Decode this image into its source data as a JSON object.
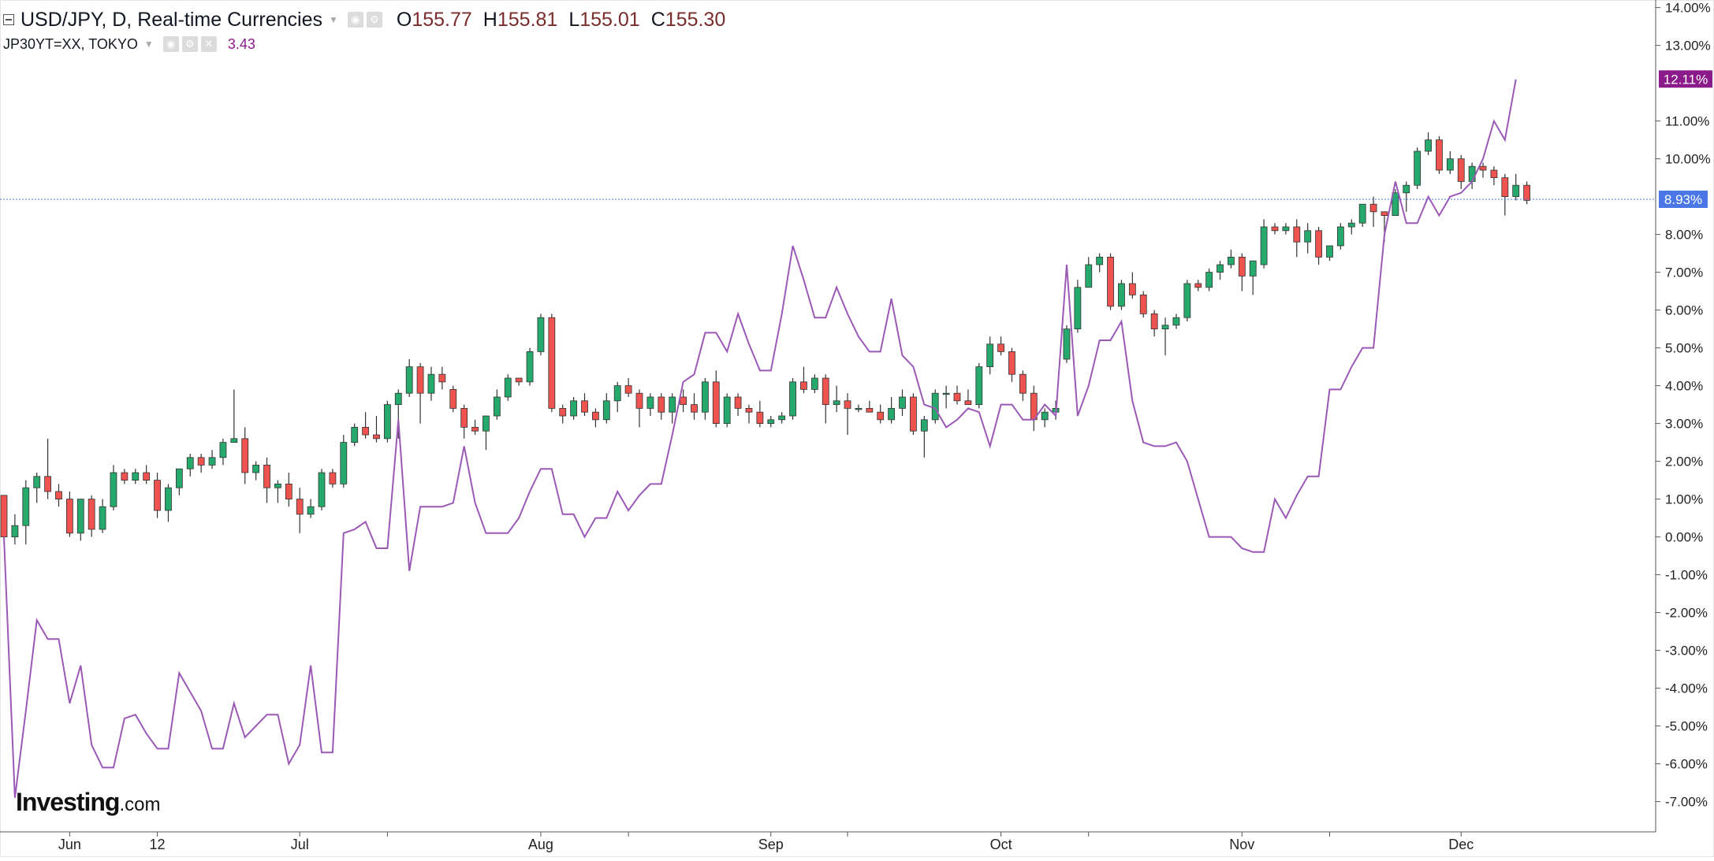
{
  "header": {
    "symbol_line": "USD/JPY, D, Real-time Currencies",
    "ohlc": [
      {
        "label": "O",
        "value": "155.77"
      },
      {
        "label": "H",
        "value": "155.81"
      },
      {
        "label": "L",
        "value": "155.01"
      },
      {
        "label": "C",
        "value": "155.30"
      }
    ],
    "indicator_line": "JP30YT=XX, TOKYO",
    "indicator_value": "3.43"
  },
  "brand": {
    "main": "Investing",
    "suffix": ".com"
  },
  "colors": {
    "up": "#26a96c",
    "down": "#ef5350",
    "comparison": "#9b59b6",
    "last_price_badge": "#4a77e5",
    "comparison_badge": "#8b1a8b"
  },
  "chart_data": {
    "type": "candlestick",
    "y_axis": {
      "unit": "percent change",
      "ylim": [
        -7.8,
        14.2
      ],
      "ticks": [
        14,
        13,
        11,
        10,
        8,
        7,
        6,
        5,
        4,
        3,
        2,
        1,
        0,
        -1,
        -2,
        -3,
        -4,
        -5,
        -6,
        -7
      ],
      "tick_labels": [
        "14.00%",
        "13.00%",
        "11.00%",
        "10.00%",
        "8.00%",
        "7.00%",
        "6.00%",
        "5.00%",
        "4.00%",
        "3.00%",
        "2.00%",
        "1.00%",
        "0.00%",
        "-1.00%",
        "-2.00%",
        "-3.00%",
        "-4.00%",
        "-5.00%",
        "-6.00%",
        "-7.00%"
      ]
    },
    "x_axis": {
      "index_range": [
        0,
        145
      ],
      "labels": [
        {
          "index": 6,
          "text": "Jun"
        },
        {
          "index": 14,
          "text": "12"
        },
        {
          "index": 27,
          "text": "Jul"
        },
        {
          "index": 49,
          "text": "Aug"
        },
        {
          "index": 70,
          "text": "Sep"
        },
        {
          "index": 91,
          "text": "Oct"
        },
        {
          "index": 113,
          "text": "Nov"
        },
        {
          "index": 133,
          "text": "Dec"
        }
      ],
      "ticks": [
        6,
        14,
        27,
        35,
        49,
        57,
        70,
        77,
        91,
        99,
        113,
        121,
        133
      ]
    },
    "series": [
      {
        "name": "USD/JPY",
        "kind": "candlestick",
        "ohlc": [
          [
            1.1,
            1.1,
            -0.2,
            0.0
          ],
          [
            0.0,
            0.6,
            -0.2,
            0.3
          ],
          [
            0.3,
            1.5,
            -0.2,
            1.3
          ],
          [
            1.3,
            1.7,
            0.9,
            1.6
          ],
          [
            1.6,
            2.6,
            1.0,
            1.2
          ],
          [
            1.2,
            1.4,
            0.8,
            1.0
          ],
          [
            1.0,
            1.2,
            0.0,
            0.1
          ],
          [
            0.1,
            1.0,
            -0.1,
            1.0
          ],
          [
            1.0,
            1.1,
            0.0,
            0.2
          ],
          [
            0.2,
            1.0,
            0.1,
            0.8
          ],
          [
            0.8,
            1.9,
            0.7,
            1.7
          ],
          [
            1.7,
            1.8,
            1.4,
            1.5
          ],
          [
            1.5,
            1.8,
            1.4,
            1.7
          ],
          [
            1.7,
            1.9,
            1.4,
            1.5
          ],
          [
            1.5,
            1.7,
            0.5,
            0.7
          ],
          [
            0.7,
            1.4,
            0.4,
            1.3
          ],
          [
            1.3,
            1.8,
            1.1,
            1.8
          ],
          [
            1.8,
            2.2,
            1.6,
            2.1
          ],
          [
            2.1,
            2.2,
            1.7,
            1.9
          ],
          [
            1.9,
            2.3,
            1.8,
            2.1
          ],
          [
            2.1,
            2.6,
            1.9,
            2.5
          ],
          [
            2.5,
            3.9,
            2.5,
            2.6
          ],
          [
            2.6,
            2.9,
            1.4,
            1.7
          ],
          [
            1.7,
            2.0,
            1.5,
            1.9
          ],
          [
            1.9,
            2.1,
            0.9,
            1.3
          ],
          [
            1.3,
            1.5,
            0.9,
            1.4
          ],
          [
            1.4,
            1.7,
            0.8,
            1.0
          ],
          [
            1.0,
            1.3,
            0.1,
            0.6
          ],
          [
            0.6,
            1.0,
            0.5,
            0.8
          ],
          [
            0.8,
            1.8,
            0.7,
            1.7
          ],
          [
            1.7,
            1.8,
            1.3,
            1.4
          ],
          [
            1.4,
            2.7,
            1.3,
            2.5
          ],
          [
            2.5,
            3.0,
            2.4,
            2.9
          ],
          [
            2.9,
            3.3,
            2.6,
            2.7
          ],
          [
            2.7,
            3.2,
            2.5,
            2.6
          ],
          [
            2.6,
            3.6,
            2.5,
            3.5
          ],
          [
            3.5,
            3.9,
            2.6,
            3.8
          ],
          [
            3.8,
            4.7,
            3.7,
            4.5
          ],
          [
            4.5,
            4.6,
            3.0,
            3.8
          ],
          [
            3.8,
            4.5,
            3.6,
            4.3
          ],
          [
            4.3,
            4.5,
            3.9,
            4.1
          ],
          [
            3.9,
            4.0,
            3.3,
            3.4
          ],
          [
            3.4,
            3.5,
            2.6,
            2.9
          ],
          [
            2.9,
            3.1,
            2.7,
            2.8
          ],
          [
            2.8,
            3.2,
            2.3,
            3.2
          ],
          [
            3.2,
            3.9,
            3.1,
            3.7
          ],
          [
            3.7,
            4.3,
            3.6,
            4.2
          ],
          [
            4.2,
            4.2,
            4.0,
            4.1
          ],
          [
            4.1,
            5.0,
            4.0,
            4.9
          ],
          [
            4.9,
            5.9,
            4.8,
            5.8
          ],
          [
            5.8,
            5.9,
            3.3,
            3.4
          ],
          [
            3.4,
            3.5,
            3.0,
            3.2
          ],
          [
            3.2,
            3.7,
            3.1,
            3.6
          ],
          [
            3.6,
            3.8,
            3.2,
            3.3
          ],
          [
            3.3,
            3.4,
            2.9,
            3.1
          ],
          [
            3.1,
            3.8,
            3.0,
            3.6
          ],
          [
            3.6,
            4.1,
            3.3,
            4.0
          ],
          [
            4.0,
            4.2,
            3.7,
            3.8
          ],
          [
            3.8,
            3.9,
            2.9,
            3.4
          ],
          [
            3.4,
            3.8,
            3.2,
            3.7
          ],
          [
            3.7,
            3.8,
            3.1,
            3.3
          ],
          [
            3.3,
            3.8,
            3.0,
            3.7
          ],
          [
            3.7,
            3.9,
            3.3,
            3.5
          ],
          [
            3.5,
            3.8,
            3.1,
            3.3
          ],
          [
            3.3,
            4.2,
            3.1,
            4.1
          ],
          [
            4.1,
            4.4,
            2.9,
            3.0
          ],
          [
            3.0,
            3.8,
            2.9,
            3.7
          ],
          [
            3.7,
            3.8,
            3.2,
            3.4
          ],
          [
            3.4,
            3.5,
            3.0,
            3.3
          ],
          [
            3.3,
            3.6,
            2.9,
            3.0
          ],
          [
            3.0,
            3.2,
            2.9,
            3.1
          ],
          [
            3.1,
            3.3,
            3.0,
            3.2
          ],
          [
            3.2,
            4.2,
            3.1,
            4.1
          ],
          [
            4.1,
            4.5,
            3.8,
            3.9
          ],
          [
            3.9,
            4.3,
            3.8,
            4.2
          ],
          [
            4.2,
            4.3,
            3.0,
            3.5
          ],
          [
            3.5,
            4.0,
            3.3,
            3.6
          ],
          [
            3.6,
            3.8,
            2.7,
            3.4
          ],
          [
            3.4,
            3.5,
            3.3,
            3.4
          ],
          [
            3.4,
            3.6,
            3.3,
            3.3
          ],
          [
            3.3,
            3.5,
            3.0,
            3.1
          ],
          [
            3.1,
            3.7,
            3.0,
            3.4
          ],
          [
            3.4,
            3.9,
            3.2,
            3.7
          ],
          [
            3.7,
            3.8,
            2.7,
            2.8
          ],
          [
            2.8,
            3.2,
            2.1,
            3.1
          ],
          [
            3.1,
            3.9,
            3.0,
            3.8
          ],
          [
            3.8,
            4.0,
            3.4,
            3.8
          ],
          [
            3.8,
            4.0,
            3.5,
            3.6
          ],
          [
            3.6,
            3.9,
            3.5,
            3.5
          ],
          [
            3.5,
            4.6,
            3.4,
            4.5
          ],
          [
            4.5,
            5.3,
            4.3,
            5.1
          ],
          [
            5.1,
            5.3,
            4.8,
            4.9
          ],
          [
            4.9,
            5.0,
            4.1,
            4.3
          ],
          [
            4.3,
            4.4,
            3.6,
            3.8
          ],
          [
            3.8,
            4.0,
            2.8,
            3.1
          ],
          [
            3.1,
            3.4,
            2.9,
            3.3
          ],
          [
            3.3,
            3.6,
            3.1,
            3.4
          ],
          [
            4.7,
            5.6,
            4.6,
            5.5
          ],
          [
            5.5,
            6.8,
            5.4,
            6.6
          ],
          [
            6.6,
            7.4,
            6.6,
            7.2
          ],
          [
            7.2,
            7.5,
            7.0,
            7.4
          ],
          [
            7.4,
            7.5,
            6.0,
            6.1
          ],
          [
            6.1,
            6.8,
            6.0,
            6.7
          ],
          [
            6.7,
            7.0,
            6.3,
            6.4
          ],
          [
            6.4,
            6.5,
            5.8,
            5.9
          ],
          [
            5.9,
            6.0,
            5.3,
            5.5
          ],
          [
            5.5,
            5.8,
            4.8,
            5.6
          ],
          [
            5.6,
            5.9,
            5.5,
            5.8
          ],
          [
            5.8,
            6.8,
            5.7,
            6.7
          ],
          [
            6.7,
            6.8,
            6.5,
            6.6
          ],
          [
            6.6,
            7.1,
            6.5,
            7.0
          ],
          [
            7.0,
            7.3,
            6.8,
            7.2
          ],
          [
            7.2,
            7.6,
            7.1,
            7.4
          ],
          [
            7.4,
            7.5,
            6.5,
            6.9
          ],
          [
            6.9,
            7.3,
            6.4,
            7.3
          ],
          [
            7.2,
            8.4,
            7.1,
            8.2
          ],
          [
            8.2,
            8.3,
            8.0,
            8.1
          ],
          [
            8.1,
            8.3,
            8.0,
            8.2
          ],
          [
            8.2,
            8.4,
            7.4,
            7.8
          ],
          [
            7.8,
            8.3,
            7.5,
            8.1
          ],
          [
            8.1,
            8.2,
            7.2,
            7.4
          ],
          [
            7.4,
            7.7,
            7.3,
            7.7
          ],
          [
            7.7,
            8.3,
            7.6,
            8.2
          ],
          [
            8.2,
            8.4,
            8.0,
            8.3
          ],
          [
            8.3,
            8.8,
            8.2,
            8.8
          ],
          [
            8.8,
            9.0,
            8.2,
            8.6
          ],
          [
            8.6,
            8.6,
            7.8,
            8.5
          ],
          [
            8.5,
            9.2,
            8.5,
            9.1
          ],
          [
            9.1,
            9.4,
            8.6,
            9.3
          ],
          [
            9.3,
            10.3,
            9.2,
            10.2
          ],
          [
            10.2,
            10.7,
            10.1,
            10.5
          ],
          [
            10.5,
            10.6,
            9.6,
            9.7
          ],
          [
            9.7,
            10.2,
            9.6,
            10.0
          ],
          [
            10.0,
            10.1,
            9.2,
            9.4
          ],
          [
            9.4,
            9.9,
            9.2,
            9.8
          ],
          [
            9.8,
            9.9,
            9.5,
            9.7
          ],
          [
            9.7,
            9.8,
            9.3,
            9.5
          ],
          [
            9.5,
            9.6,
            8.5,
            9.0
          ],
          [
            9.0,
            9.6,
            8.9,
            9.3
          ],
          [
            9.3,
            9.4,
            8.8,
            8.9
          ]
        ]
      },
      {
        "name": "JP30YT=XX",
        "kind": "line",
        "values": [
          0.0,
          -6.9,
          -4.6,
          -2.2,
          -2.7,
          -2.7,
          -4.4,
          -3.4,
          -5.5,
          -6.1,
          -6.1,
          -4.8,
          -4.7,
          -5.2,
          -5.6,
          -5.6,
          -3.6,
          -4.1,
          -4.6,
          -5.6,
          -5.6,
          -4.4,
          -5.3,
          -5.0,
          -4.7,
          -4.7,
          -6.0,
          -5.5,
          -3.4,
          -5.7,
          -5.7,
          0.1,
          0.2,
          0.4,
          -0.3,
          -0.3,
          3.1,
          -0.9,
          0.8,
          0.8,
          0.8,
          0.9,
          2.4,
          0.9,
          0.1,
          0.1,
          0.1,
          0.5,
          1.2,
          1.8,
          1.8,
          0.6,
          0.6,
          0.0,
          0.5,
          0.5,
          1.2,
          0.7,
          1.1,
          1.4,
          1.4,
          2.7,
          4.1,
          4.3,
          5.4,
          5.4,
          4.9,
          5.9,
          5.1,
          4.4,
          4.4,
          5.9,
          7.7,
          6.8,
          5.8,
          5.8,
          6.6,
          5.9,
          5.3,
          4.9,
          4.9,
          6.3,
          4.8,
          4.5,
          3.5,
          3.4,
          2.9,
          3.1,
          3.4,
          3.3,
          2.4,
          3.5,
          3.5,
          3.1,
          3.1,
          3.5,
          3.2,
          7.2,
          3.2,
          4.0,
          5.2,
          5.2,
          5.7,
          3.6,
          2.5,
          2.4,
          2.4,
          2.5,
          2.0,
          1.0,
          0.0,
          0.0,
          0.0,
          -0.3,
          -0.4,
          -0.4,
          1.0,
          0.5,
          1.1,
          1.6,
          1.6,
          3.9,
          3.9,
          4.5,
          5.0,
          5.0,
          8.0,
          9.4,
          8.3,
          8.3,
          9.0,
          8.5,
          9.0,
          9.1,
          9.4,
          10.0,
          11.0,
          10.5,
          12.1
        ]
      }
    ],
    "last_price": {
      "value": 8.93,
      "label": "8.93%"
    },
    "comparison_last": {
      "value": 12.11,
      "label": "12.11%"
    }
  }
}
